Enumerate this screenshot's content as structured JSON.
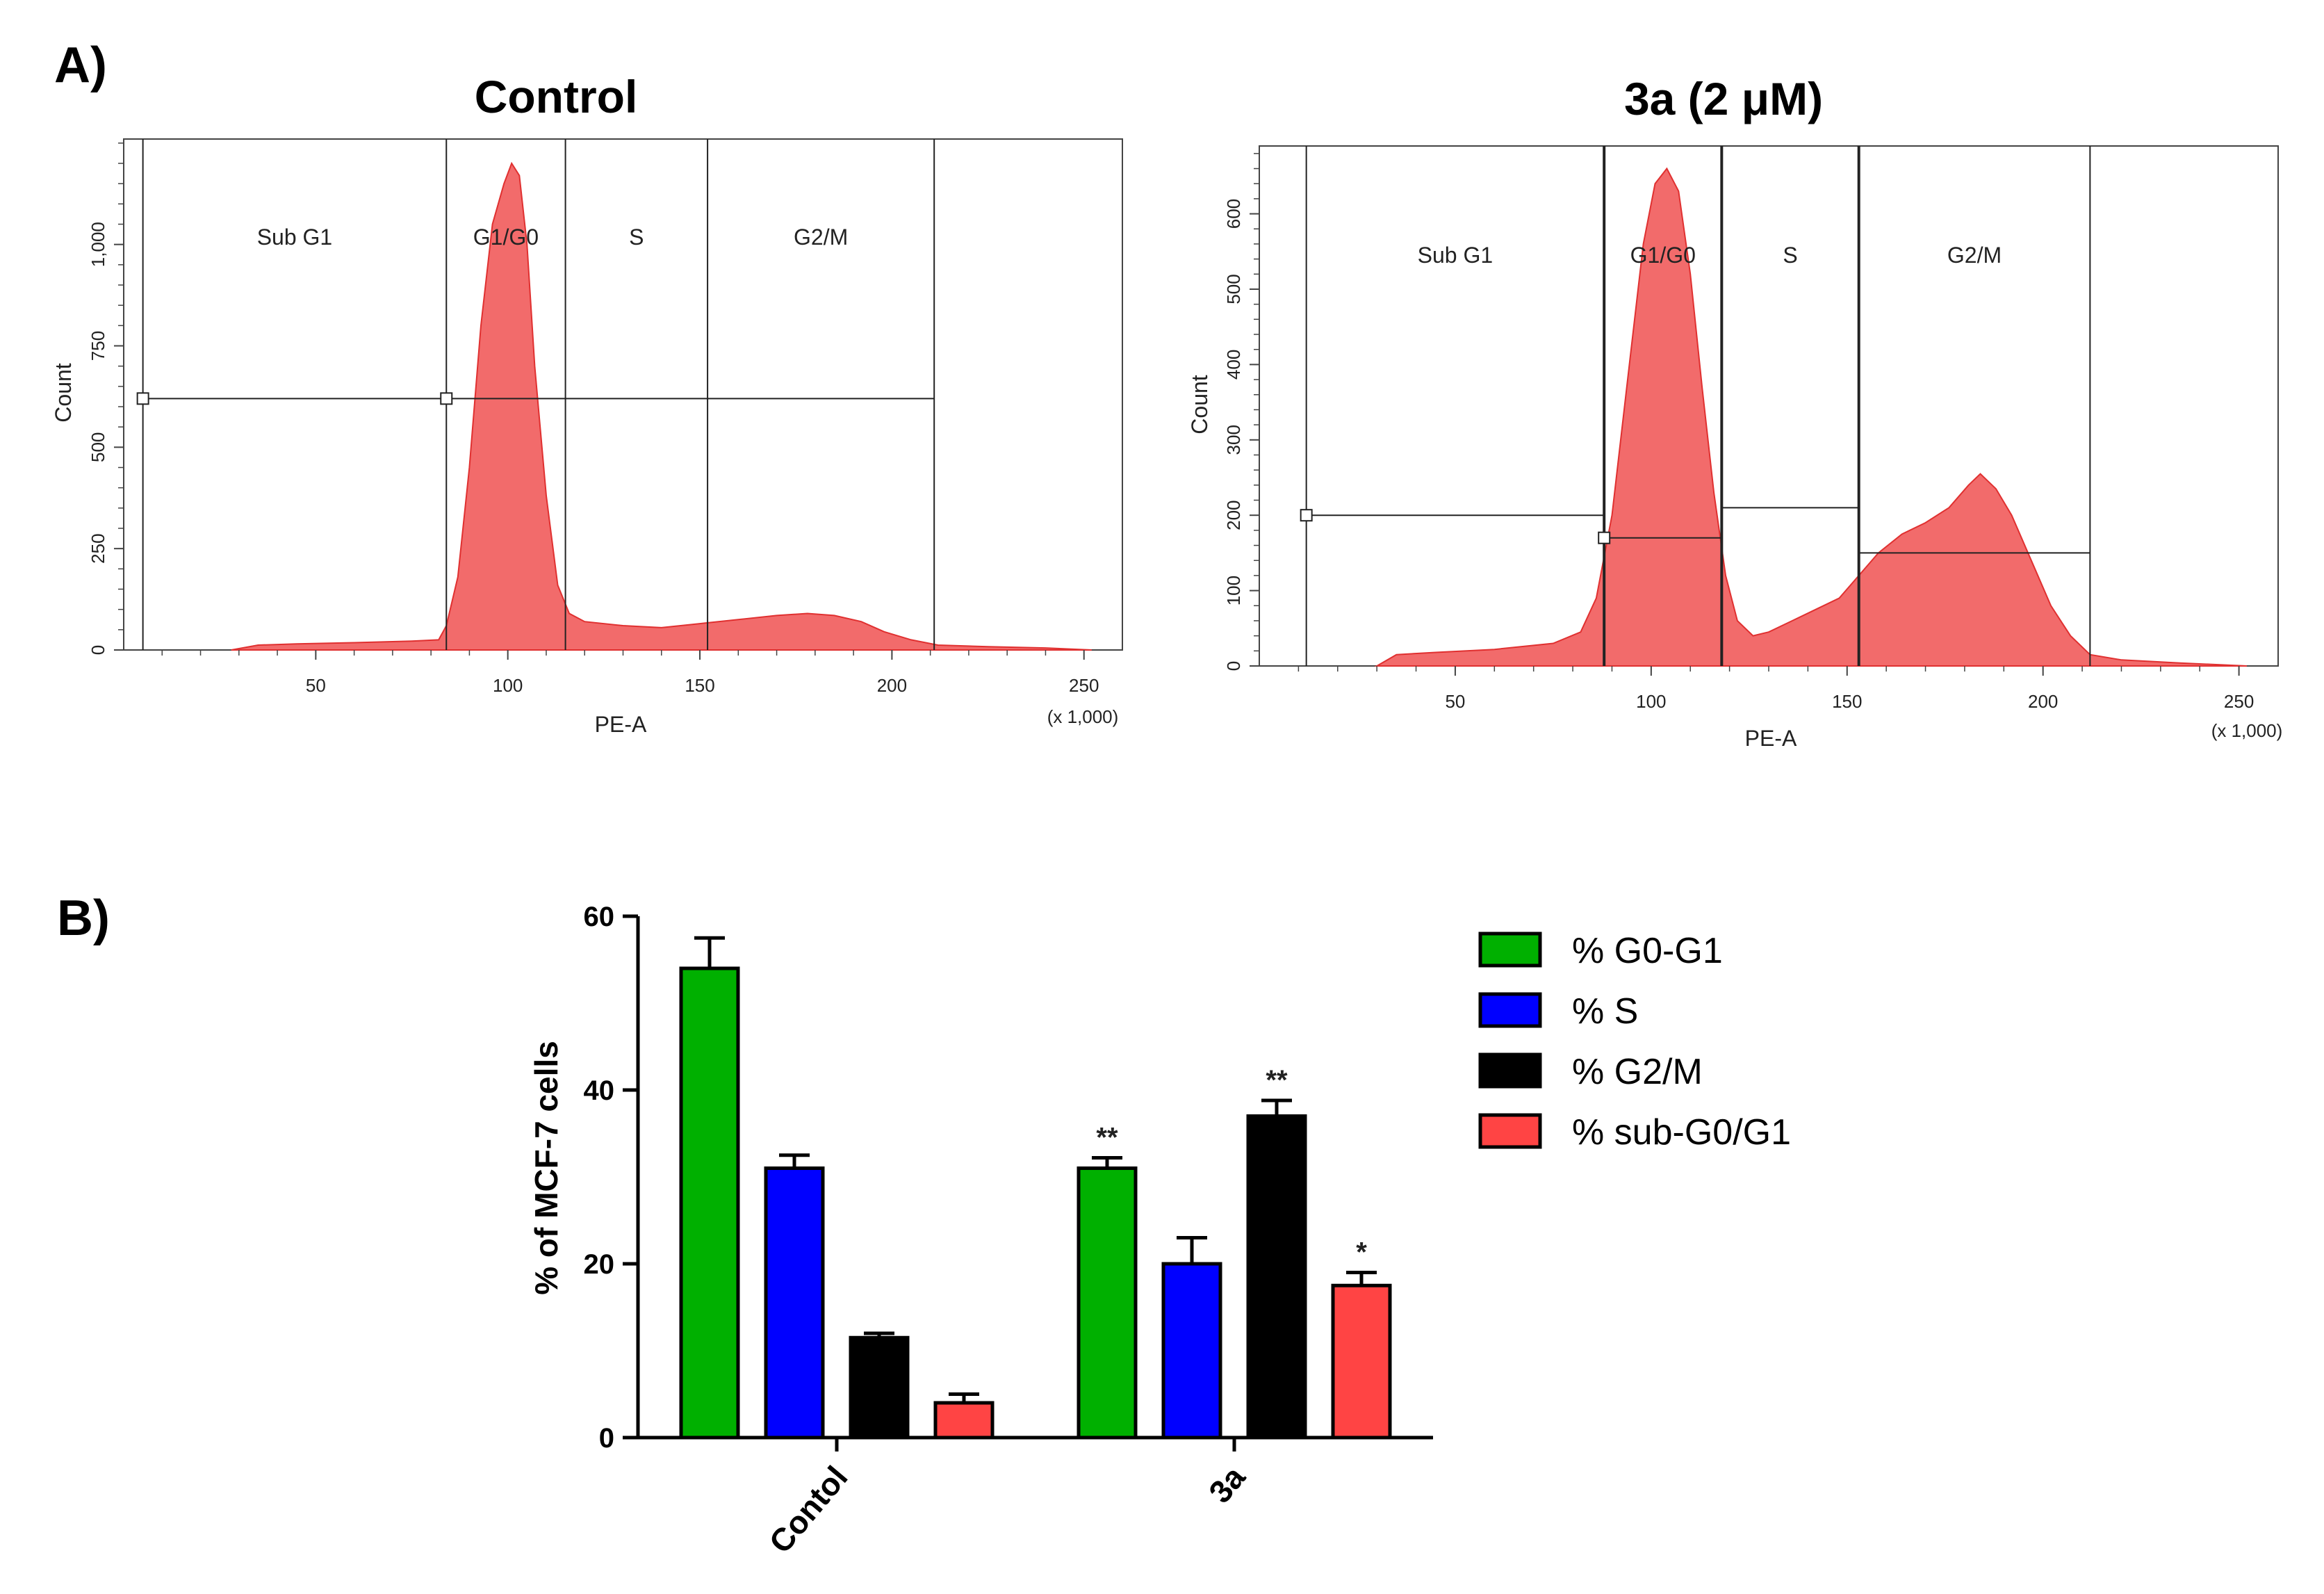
{
  "panel_a_label": "A)",
  "panel_b_label": "B)",
  "chart_data": [
    {
      "type": "area",
      "name": "histogram-control",
      "title": "Control",
      "xlabel": "PE-A",
      "ylabel": "Count",
      "x_multiplier_label": "(x 1,000)",
      "x_ticks": [
        "50",
        "100",
        "150",
        "200",
        "250"
      ],
      "x_tick_values": [
        50,
        100,
        150,
        200,
        250
      ],
      "y_ticks": [
        "0",
        "250",
        "500",
        "750",
        "1,000"
      ],
      "y_tick_values": [
        0,
        250,
        500,
        750,
        1000
      ],
      "xlim": [
        0,
        260
      ],
      "ylim": [
        0,
        1260
      ],
      "gates": [
        {
          "label": "Sub G1",
          "x_start": 5,
          "x_end": 84,
          "y": 620
        },
        {
          "label": "G1/G0",
          "x_start": 84,
          "x_end": 115,
          "y": 620
        },
        {
          "label": "S",
          "x_start": 115,
          "x_end": 152,
          "y": 620
        },
        {
          "label": "G2/M",
          "x_start": 152,
          "x_end": 211,
          "y": 620
        }
      ],
      "x": [
        28,
        35,
        45,
        60,
        75,
        82,
        84,
        87,
        90,
        93,
        96,
        99,
        101,
        103,
        105,
        107,
        110,
        113,
        116,
        120,
        130,
        140,
        150,
        160,
        170,
        178,
        185,
        192,
        198,
        205,
        212,
        225,
        240,
        252
      ],
      "values": [
        0,
        12,
        15,
        18,
        22,
        25,
        60,
        180,
        450,
        800,
        1050,
        1150,
        1200,
        1170,
        1000,
        700,
        380,
        160,
        90,
        70,
        60,
        55,
        65,
        75,
        85,
        90,
        85,
        70,
        45,
        25,
        12,
        8,
        5,
        0
      ]
    },
    {
      "type": "area",
      "name": "histogram-3a",
      "title": "3a (2 μM)",
      "xlabel": "PE-A",
      "ylabel": "Count",
      "x_multiplier_label": "(x 1,000)",
      "x_ticks": [
        "50",
        "100",
        "150",
        "200",
        "250"
      ],
      "x_tick_values": [
        50,
        100,
        150,
        200,
        250
      ],
      "y_ticks": [
        "0",
        "100",
        "200",
        "300",
        "400",
        "500",
        "600"
      ],
      "y_tick_values": [
        0,
        100,
        200,
        300,
        400,
        500,
        600
      ],
      "xlim": [
        0,
        260
      ],
      "ylim": [
        0,
        690
      ],
      "gates": [
        {
          "label": "Sub G1",
          "x_start": 12,
          "x_end": 88,
          "y": 200
        },
        {
          "label": "G1/G0",
          "x_start": 88,
          "x_end": 118,
          "y": 170
        },
        {
          "label": "S",
          "x_start": 118,
          "x_end": 153,
          "y": 210
        },
        {
          "label": "G2/M",
          "x_start": 153,
          "x_end": 212,
          "y": 150
        }
      ],
      "x": [
        30,
        35,
        45,
        60,
        75,
        82,
        86,
        90,
        94,
        98,
        101,
        104,
        107,
        110,
        113,
        116,
        119,
        122,
        126,
        130,
        136,
        142,
        148,
        153,
        158,
        164,
        170,
        176,
        181,
        184,
        188,
        192,
        197,
        202,
        207,
        212,
        220,
        235,
        252
      ],
      "values": [
        0,
        15,
        18,
        22,
        30,
        45,
        90,
        200,
        380,
        560,
        640,
        660,
        630,
        520,
        370,
        230,
        120,
        60,
        40,
        45,
        60,
        75,
        90,
        120,
        150,
        175,
        190,
        210,
        240,
        255,
        235,
        200,
        140,
        80,
        40,
        15,
        8,
        4,
        0
      ]
    },
    {
      "type": "bar",
      "name": "cell-cycle-bar-chart",
      "title": "",
      "categories": [
        "Contol",
        "3a"
      ],
      "ylabel": "% of MCF-7 cells",
      "y_ticks": [
        "0",
        "20",
        "40",
        "60"
      ],
      "y_tick_values": [
        0,
        20,
        40,
        60
      ],
      "ylim": [
        0,
        60
      ],
      "series": [
        {
          "name": "% G0-G1",
          "color": "#00b000",
          "values": [
            54,
            31
          ],
          "errors": [
            3.5,
            1.2
          ],
          "annotations": [
            "",
            "**"
          ]
        },
        {
          "name": "% S",
          "color": "#0000ff",
          "values": [
            31,
            20
          ],
          "errors": [
            1.5,
            3
          ],
          "annotations": [
            "",
            ""
          ]
        },
        {
          "name": "% G2/M",
          "color": "#000000",
          "values": [
            11.5,
            37
          ],
          "errors": [
            0.5,
            1.8
          ],
          "annotations": [
            "",
            "**"
          ]
        },
        {
          "name": "% sub-G0/G1",
          "color": "#ff4444",
          "values": [
            4,
            17.5
          ],
          "errors": [
            1,
            1.5
          ],
          "annotations": [
            "",
            "*"
          ]
        }
      ]
    }
  ]
}
